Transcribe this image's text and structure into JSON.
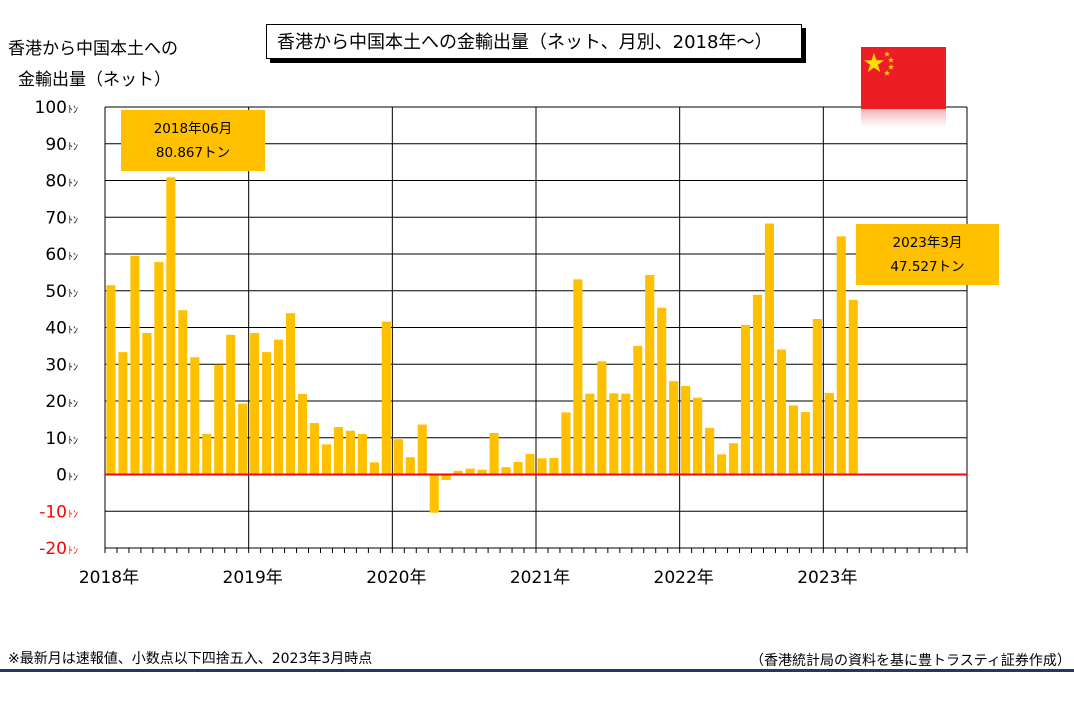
{
  "header": {
    "title": "香港から中国本土への金輸出量（ネット、月別、2018年～）",
    "y_title_line1": "香港から中国本土への",
    "y_title_line2": "金輸出量（ネット）"
  },
  "callouts": [
    {
      "line1": "2018年06月",
      "line2": "80.867トン"
    },
    {
      "line1": "2023年3月",
      "line2": "47.527トン"
    }
  ],
  "footer": {
    "note": "※最新月は速報値、小数点以下四捨五入、2023年3月時点",
    "source": "（香港統計局の資料を基に豊トラスティ証券作成）"
  },
  "colors": {
    "bar": "#ffc000",
    "zero_line": "#ff0000",
    "negative_tick_label": "#ff0000",
    "flag_red": "#ee1c25",
    "flag_star": "#ffde00",
    "rule": "#1f3864"
  },
  "flag": {
    "icon": "china-flag-icon"
  },
  "chart_data": {
    "type": "bar",
    "ylim": [
      -20,
      100
    ],
    "y_ticks": [
      100,
      90,
      80,
      70,
      60,
      50,
      40,
      30,
      20,
      10,
      0,
      -10,
      -20
    ],
    "y_unit_suffix": "ﾄﾝ",
    "grid": true,
    "x_period": {
      "start": "2018-01",
      "end": "2023-12"
    },
    "x_tick_labels": [
      "2018年",
      "2019年",
      "2020年",
      "2021年",
      "2022年",
      "2023年"
    ],
    "series": [
      {
        "values": [
          51.5,
          33.3,
          59.5,
          38.5,
          57.8,
          80.867,
          44.7,
          31.9,
          11.0,
          29.9,
          38.0,
          19.3,
          38.5,
          33.3,
          36.7,
          43.9,
          21.9,
          14.0,
          8.2,
          12.9,
          11.9,
          11.0,
          3.3,
          41.6,
          9.6,
          4.7,
          13.6,
          -10.4,
          -1.5,
          1.0,
          1.6,
          1.3,
          11.3,
          2.0,
          3.4,
          5.6,
          4.4,
          4.5,
          16.9,
          53.1,
          22.0,
          30.8,
          22.1,
          22.0,
          35.0,
          54.3,
          45.4,
          25.4,
          24.1,
          20.9,
          12.7,
          5.5,
          8.5,
          40.7,
          48.9,
          68.3,
          34.0,
          18.8,
          17.0,
          42.3,
          22.2,
          64.8,
          47.527
        ]
      }
    ]
  }
}
